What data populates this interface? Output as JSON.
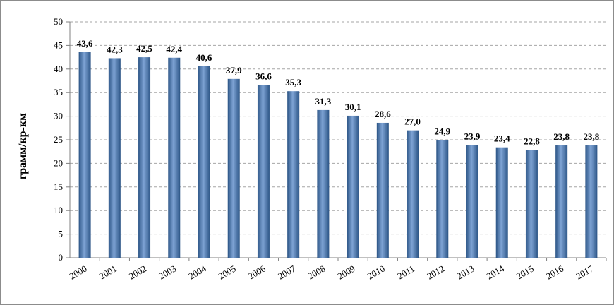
{
  "chart_data": {
    "type": "bar",
    "title": "",
    "xlabel": "",
    "ylabel": "грамм/кр-км",
    "categories": [
      "2000",
      "2001",
      "2002",
      "2003",
      "2004",
      "2005",
      "2006",
      "2007",
      "2008",
      "2009",
      "2010",
      "2011",
      "2012",
      "2013",
      "2014",
      "2015",
      "2016",
      "2017"
    ],
    "values": [
      43.6,
      42.3,
      42.5,
      42.4,
      40.6,
      37.9,
      36.6,
      35.3,
      31.3,
      30.1,
      28.6,
      27.0,
      24.9,
      23.9,
      23.4,
      22.8,
      23.8,
      23.8
    ],
    "data_labels": [
      "43,6",
      "42,3",
      "42,5",
      "42,4",
      "40,6",
      "37,9",
      "36,6",
      "35,3",
      "31,3",
      "30,1",
      "28,6",
      "27,0",
      "24,9",
      "23,9",
      "23,4",
      "22,8",
      "23,8",
      "23,8"
    ],
    "ylim": [
      0,
      50
    ],
    "yticks": [
      0,
      5,
      10,
      15,
      20,
      25,
      30,
      35,
      40,
      45,
      50
    ],
    "grid": true,
    "legend": "none",
    "colors": {
      "bar_dark": "#2c5586",
      "bar_mid": "#4f81bd",
      "bar_light": "#7ea3d4",
      "gridline": "#a6a6a6",
      "axis": "#808080"
    }
  }
}
